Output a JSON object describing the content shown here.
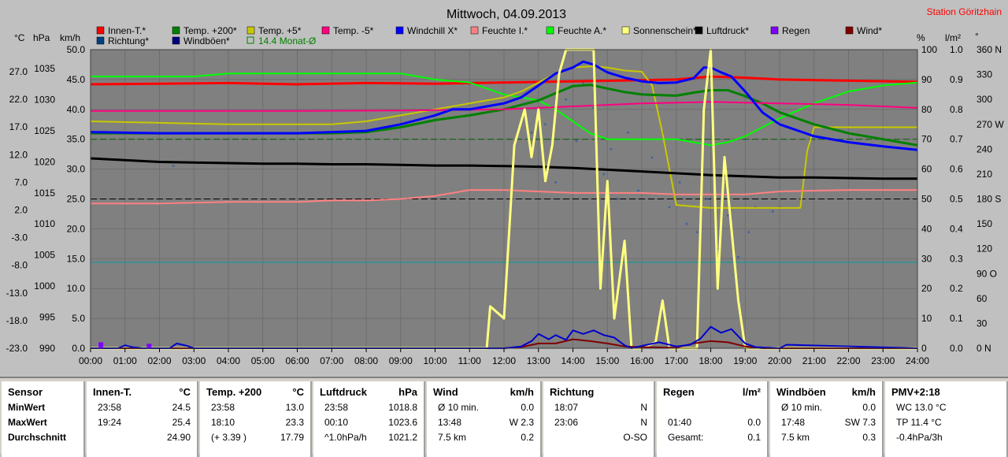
{
  "chart_data": {
    "type": "line",
    "title": "Mittwoch, 04.09.2013",
    "station": "Station Göritzhain",
    "x_ticks": [
      "00:00",
      "01:00",
      "02:00",
      "03:00",
      "04:00",
      "05:00",
      "06:00",
      "07:00",
      "08:00",
      "09:00",
      "10:00",
      "11:00",
      "12:00",
      "13:00",
      "14:00",
      "15:00",
      "16:00",
      "17:00",
      "18:00",
      "19:00",
      "20:00",
      "21:00",
      "22:00",
      "23:00",
      "24:00"
    ],
    "axis_units": {
      "temp": "°C",
      "hpa": "hPa",
      "kmh": "km/h",
      "pct": "%",
      "rain": "l/m²",
      "dir": "°"
    },
    "axes": {
      "temp": [
        "27.0",
        "22.0",
        "17.0",
        "12.0",
        "7.0",
        "2.0",
        "-3.0",
        "-8.0",
        "-13.0",
        "-18.0",
        "-23.0"
      ],
      "hpa": [
        "1035",
        "1030",
        "1025",
        "1020",
        "1015",
        "1010",
        "1005",
        "1000",
        "995",
        "990"
      ],
      "kmh": [
        "50.0",
        "45.0",
        "40.0",
        "35.0",
        "30.0",
        "25.0",
        "20.0",
        "15.0",
        "10.0",
        "5.0",
        "0.0"
      ],
      "pct": [
        "100",
        "90",
        "80",
        "70",
        "60",
        "50",
        "40",
        "30",
        "20",
        "10",
        "0"
      ],
      "rain": [
        "1.0",
        "0.9",
        "0.8",
        "0.7",
        "0.6",
        "0.5",
        "0.4",
        "0.3",
        "0.2",
        "0.1",
        "0.0"
      ],
      "dir": [
        "360 N",
        "330",
        "300",
        "270 W",
        "240",
        "210",
        "180 S",
        "150",
        "120",
        "90 O",
        "60",
        "30",
        "0 N"
      ]
    },
    "ylim_kmh": [
      0,
      50
    ],
    "legend": [
      {
        "name": "Innen-T.*",
        "color": "#ff0000"
      },
      {
        "name": "Temp. +200*",
        "color": "#008000"
      },
      {
        "name": "Temp. +5*",
        "color": "#c8c800"
      },
      {
        "name": "Temp. -5*",
        "color": "#ff0080"
      },
      {
        "name": "Windchill X*",
        "color": "#0000ff"
      },
      {
        "name": "Feuchte I.*",
        "color": "#ff8080"
      },
      {
        "name": "Feuchte A.*",
        "color": "#00ff00"
      },
      {
        "name": "Sonnenschein*",
        "color": "#ffff80"
      },
      {
        "name": "Luftdruck*",
        "color": "#000000"
      },
      {
        "name": "Regen",
        "color": "#8000ff"
      },
      {
        "name": "Wind*",
        "color": "#800000"
      },
      {
        "name": "Richtung*",
        "color": "#004080"
      },
      {
        "name": "Windböen*",
        "color": "#000080"
      },
      {
        "name": "14.4 Monat-Ø",
        "color": "#008000"
      }
    ],
    "series": [
      {
        "key": "innen",
        "color": "#ff0000",
        "width": 3,
        "x": [
          0,
          2,
          4,
          6,
          8,
          10,
          12,
          14,
          16,
          17,
          18,
          19,
          20,
          22,
          24
        ],
        "y": [
          44.2,
          44.3,
          44.4,
          44.2,
          44.4,
          44.3,
          44.5,
          44.7,
          44.9,
          45.0,
          45.5,
          45.3,
          45.0,
          44.8,
          44.6
        ]
      },
      {
        "key": "feuchteA",
        "color": "#00ff00",
        "width": 2,
        "x": [
          0,
          3,
          4,
          8,
          9,
          10,
          11,
          11.5,
          12,
          12.5,
          13,
          13.5,
          14,
          14.5,
          15,
          16,
          17,
          17.5,
          18,
          18.5,
          19,
          19.5,
          20,
          21,
          22,
          23,
          24
        ],
        "y": [
          91,
          91,
          92,
          92,
          92,
          90,
          89,
          87,
          85,
          84,
          83,
          80,
          76,
          72,
          70,
          70,
          70,
          69,
          68,
          69,
          71,
          74,
          77,
          82,
          86,
          88,
          89
        ]
      },
      {
        "key": "temp5",
        "color": "#c8c800",
        "width": 2,
        "x": [
          0,
          4,
          7,
          8,
          9,
          10,
          11,
          12,
          12.5,
          13,
          13.5,
          14,
          14.5,
          15,
          15.5,
          16,
          16.3,
          16.6,
          17,
          18,
          19,
          20,
          20.6,
          20.8,
          21,
          22,
          24
        ],
        "y": [
          38,
          37.5,
          37.5,
          38,
          39,
          40,
          41,
          42,
          43,
          44.5,
          46,
          47,
          47.2,
          47,
          46.5,
          46.3,
          44,
          36,
          24,
          23.5,
          23.5,
          23.5,
          23.5,
          33,
          37,
          37,
          37
        ]
      },
      {
        "key": "temp200",
        "color": "#008000",
        "width": 3,
        "x": [
          0,
          4,
          7,
          8,
          9,
          10,
          11,
          12,
          13,
          13.5,
          14,
          14.5,
          15,
          15.5,
          16,
          17,
          17.5,
          18,
          18.5,
          19,
          19.5,
          20,
          20.5,
          21,
          22,
          23,
          24
        ],
        "y": [
          36,
          36,
          36,
          36.2,
          37,
          38.2,
          39,
          40,
          41.5,
          42.7,
          43.9,
          44.1,
          43.5,
          42.9,
          42.5,
          42.3,
          42.8,
          43.2,
          43.2,
          42.2,
          41,
          39.5,
          38.5,
          37.5,
          36,
          35,
          34
        ]
      },
      {
        "key": "tempm5",
        "color": "#ff0080",
        "width": 2,
        "x": [
          0,
          6,
          9,
          12,
          14,
          16,
          18,
          20,
          22,
          24
        ],
        "y": [
          79.5,
          79.5,
          79.6,
          80,
          81,
          82,
          82.5,
          82,
          81.5,
          80.5
        ]
      },
      {
        "key": "windchill",
        "color": "#0000ff",
        "width": 3,
        "x": [
          0,
          2,
          4,
          6,
          8,
          9,
          10,
          10.5,
          11,
          11.5,
          12,
          12.5,
          13,
          13.5,
          14,
          14.3,
          14.6,
          15,
          15.5,
          16,
          16.5,
          17,
          17.5,
          17.8,
          18,
          18.3,
          18.6,
          19,
          19.5,
          20,
          20.5,
          21,
          22,
          23,
          24
        ],
        "y": [
          36.2,
          36,
          36,
          36,
          36.4,
          37.5,
          39,
          40,
          40,
          40.5,
          41,
          42,
          44,
          46,
          47,
          48,
          47.5,
          46.2,
          45.3,
          44.7,
          44.4,
          44.5,
          45.2,
          47,
          47,
          46.2,
          45.5,
          43,
          39.5,
          37.5,
          36.5,
          35.5,
          34.5,
          33.8,
          33.2
        ]
      },
      {
        "key": "feuchteI",
        "color": "#ff8080",
        "width": 2,
        "x": [
          0,
          2,
          4,
          6,
          7,
          8,
          9,
          10,
          11,
          12,
          14,
          15,
          16,
          17,
          18,
          19,
          20,
          22,
          24
        ],
        "y": [
          48.5,
          48.5,
          49,
          49,
          49.5,
          49.5,
          50,
          51,
          53,
          53,
          52,
          52,
          52,
          51.5,
          51.5,
          51.5,
          52.5,
          53,
          53
        ]
      },
      {
        "key": "druck",
        "color": "#000000",
        "width": 3,
        "x": [
          0,
          1,
          2,
          3,
          4,
          5,
          6,
          7,
          8,
          9,
          10,
          11,
          12,
          13,
          14,
          15,
          16,
          17,
          18,
          19,
          20,
          21,
          22,
          23,
          24
        ],
        "y": [
          1021.8,
          1021.5,
          1021.2,
          1021.1,
          1021.0,
          1020.9,
          1020.9,
          1020.8,
          1020.8,
          1020.7,
          1020.6,
          1020.6,
          1020.5,
          1020.4,
          1020.2,
          1019.9,
          1019.6,
          1019.3,
          1019.0,
          1018.8,
          1018.6,
          1018.6,
          1018.5,
          1018.4,
          1018.4
        ]
      },
      {
        "key": "sonne",
        "color": "#ffff80",
        "width": 3,
        "x": [
          0,
          11.5,
          11.6,
          12,
          12.3,
          12.6,
          12.8,
          13,
          13.2,
          13.4,
          13.6,
          13.8,
          14,
          14.2,
          14.4,
          14.6,
          14.8,
          15,
          15.2,
          15.5,
          15.7,
          15.9,
          16.0,
          16.4,
          16.6,
          16.8,
          17.0,
          17.3,
          17.6,
          17.8,
          18.0,
          18.2,
          18.4,
          18.6,
          18.8,
          19.0,
          19.1,
          24
        ],
        "y": [
          0,
          0,
          7,
          5,
          34,
          40,
          32,
          40,
          28,
          34,
          46,
          50,
          50,
          50,
          50,
          50,
          10,
          28,
          5,
          18,
          0,
          0,
          0,
          1,
          8,
          0,
          0,
          0,
          0,
          40,
          50,
          10,
          32,
          20,
          8,
          0,
          0,
          0
        ]
      },
      {
        "key": "wind",
        "color": "#800000",
        "width": 2,
        "x": [
          0,
          12,
          12.5,
          13,
          13.5,
          14,
          14.5,
          15,
          15.5,
          16,
          17,
          17.5,
          18,
          18.5,
          19,
          19.5,
          24
        ],
        "y": [
          0,
          0,
          0.2,
          0.8,
          0.8,
          1.5,
          1.2,
          0.8,
          0.3,
          0.2,
          0.1,
          0.8,
          1.2,
          1.0,
          0.3,
          0,
          0
        ]
      },
      {
        "key": "boen",
        "color": "#0000cc",
        "width": 2,
        "x": [
          0,
          0.8,
          1.0,
          1.2,
          1.5,
          2.3,
          2.5,
          2.8,
          3.0,
          12,
          12.5,
          12.8,
          13,
          13.3,
          13.5,
          13.8,
          14,
          14.3,
          14.6,
          14.9,
          15.2,
          15.5,
          15.7,
          16,
          16.5,
          17,
          17.4,
          17.7,
          18,
          18.3,
          18.6,
          19,
          19.3,
          20,
          20.2,
          24
        ],
        "y": [
          0,
          0,
          0.5,
          0.2,
          0,
          0,
          0.8,
          0.4,
          0,
          0,
          0.3,
          1.2,
          2.4,
          1.5,
          2.2,
          1.4,
          3.0,
          2.4,
          3.0,
          2.2,
          1.8,
          0.5,
          0,
          0.4,
          1.0,
          0.3,
          0.6,
          1.6,
          3.6,
          2.6,
          3.2,
          0.8,
          0.2,
          0,
          0.6,
          0
        ]
      }
    ],
    "direction_dots": {
      "color": "#4060a0",
      "x": [
        2.4,
        12.8,
        13.0,
        13.2,
        13.5,
        13.8,
        14.1,
        14.3,
        14.6,
        14.9,
        15.1,
        15.3,
        15.6,
        15.9,
        16.3,
        16.6,
        16.8,
        17.1,
        17.3,
        17.6,
        17.9,
        18.2,
        18.5,
        18.8,
        19.1,
        19.3,
        19.8,
        20.0
      ],
      "y": [
        220,
        260,
        220,
        270,
        200,
        300,
        250,
        320,
        290,
        210,
        240,
        180,
        260,
        190,
        230,
        260,
        170,
        200,
        150,
        140,
        180,
        120,
        160,
        110,
        140,
        170,
        165,
        170
      ]
    },
    "rain_bars": {
      "color": "#8000ff",
      "x": [
        0.3,
        1.7
      ],
      "y": [
        0.02,
        0.015
      ]
    },
    "month_avg_kmh": 14.4
  },
  "summary": {
    "sensor": {
      "title": "Sensor",
      "rows": [
        "MinWert",
        "MaxWert",
        "Durchschnitt"
      ]
    },
    "innen": {
      "title": "Innen-T.",
      "unit": "°C",
      "rows": [
        [
          "23:58",
          "24.5"
        ],
        [
          "19:24",
          "25.4"
        ],
        [
          "",
          "24.90"
        ]
      ]
    },
    "temp200": {
      "title": "Temp. +200",
      "unit": "°C",
      "rows": [
        [
          "23:58",
          "13.0"
        ],
        [
          "18:10",
          "23.3"
        ],
        [
          "(+ 3.39 )",
          "17.79"
        ]
      ]
    },
    "luftdruck": {
      "title": "Luftdruck",
      "unit": "hPa",
      "rows": [
        [
          "23:58",
          "1018.8"
        ],
        [
          "00:10",
          "1023.6"
        ],
        [
          "^1.0hPa/h",
          "1021.2"
        ]
      ]
    },
    "wind": {
      "title": "Wind",
      "unit": "km/h",
      "rows": [
        [
          "Ø 10 min.",
          "0.0"
        ],
        [
          "13:48",
          "W 2.3"
        ],
        [
          "7.5 km",
          "0.2"
        ]
      ]
    },
    "richtung": {
      "title": "Richtung",
      "unit": "",
      "rows": [
        [
          "18:07",
          "N"
        ],
        [
          "23:06",
          "N"
        ],
        [
          "",
          "O-SO"
        ]
      ]
    },
    "regen": {
      "title": "Regen",
      "unit": "l/m²",
      "rows": [
        [
          "",
          ""
        ],
        [
          "01:40",
          "0.0"
        ],
        [
          "Gesamt:",
          "0.1"
        ]
      ]
    },
    "boeen": {
      "title": "Windböen",
      "unit": "km/h",
      "rows": [
        [
          "Ø 10 min.",
          "0.0"
        ],
        [
          "17:48",
          "SW 7.3"
        ],
        [
          "7.5 km",
          "0.3"
        ]
      ]
    },
    "pmv": {
      "title": "PMV+2:18",
      "unit": "",
      "rows": [
        [
          "WC 13.0 °C",
          ""
        ],
        [
          "TP 11.4 °C",
          ""
        ],
        [
          "-0.4hPa/3h",
          ""
        ]
      ]
    }
  }
}
